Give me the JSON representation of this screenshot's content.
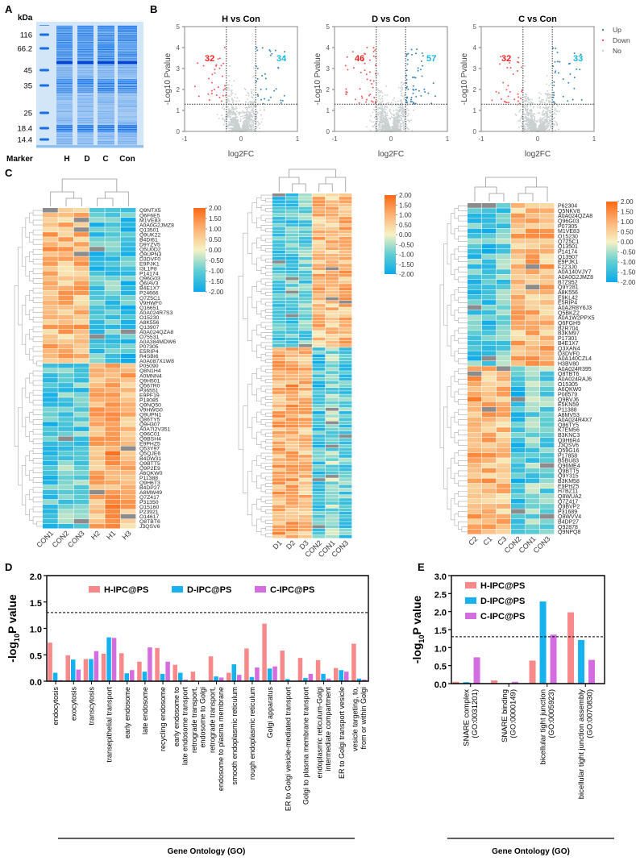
{
  "panels": {
    "a": "A",
    "b": "B",
    "c": "C",
    "d": "D",
    "e": "E"
  },
  "gel": {
    "unit": "kDa",
    "markers": [
      "116",
      "66.2",
      "45",
      "35",
      "25",
      "18.4",
      "14.4"
    ],
    "lanes": [
      "Marker",
      "H",
      "D",
      "C",
      "Con"
    ]
  },
  "volcano": {
    "xlabel": "log2FC",
    "ylabel": "-Log10 Pvalue",
    "xticks": [
      "-1",
      "0",
      "1"
    ],
    "yticks": [
      "0",
      "1",
      "2",
      "3",
      "4",
      "5"
    ],
    "xlim": [
      -1,
      1
    ],
    "ylim": [
      0,
      5
    ],
    "fc_threshold": 0.26,
    "p_threshold": 1.3,
    "legend": [
      {
        "label": "Up",
        "color": "#3d86b8"
      },
      {
        "label": "Down",
        "color": "#f0595a"
      },
      {
        "label": "No",
        "color": "#c9d0d0"
      }
    ],
    "plots": [
      {
        "title": "H vs Con",
        "down": "32",
        "up": "34"
      },
      {
        "title": "D vs Con",
        "down": "46",
        "up": "57"
      },
      {
        "title": "C vs Con",
        "down": "32",
        "up": "33"
      }
    ]
  },
  "chart_data": [
    {
      "type": "heatmap",
      "columns": [
        "CON1",
        "CON2",
        "CON3",
        "H2",
        "H1",
        "H3"
      ],
      "colorbar": {
        "ticks": [
          "2.00",
          "1.50",
          "1.00",
          "0.50",
          "0.00",
          "-0.50",
          "-1.00",
          "-1.50",
          "-2.00"
        ],
        "range": [
          -2,
          2
        ]
      },
      "blocks": [
        {
          "rows": 32,
          "means": [
            0.9,
            0.8,
            0.9,
            -1.3,
            -1.1,
            -1.4
          ]
        },
        {
          "rows": 34,
          "means": [
            -1.3,
            -1.0,
            -1.1,
            0.9,
            1.2,
            0.8
          ]
        }
      ],
      "row_labels": [
        "Q9NTX5",
        "Q6F6E5",
        "M1VE83",
        "A0A0G2JMZ8",
        "Q13501",
        "Q9UK22",
        "B4DI61",
        "D9YZV5",
        "Q5U0D2",
        "Q9UPN3",
        "D3DVF0",
        "E9PJK1",
        "I3L1P8",
        "P14174",
        "Q96G03",
        "Q6IAV3",
        "B4E1X7",
        "P24666",
        "Q7Z5C1",
        "V9HWF0",
        "Q16651",
        "A0A024R7S3",
        "O15230",
        "A8K556",
        "Q13907",
        "A0A024QZA8",
        "O75531",
        "A0A384MDW6",
        "P07305",
        "E5RIP4",
        "R4SBI6",
        "A0A087X1W8",
        "P05090",
        "Q8N1H4",
        "A0MNN4",
        "Q9H501",
        "Q567R0",
        "P36551",
        "E9PF19",
        "P18085",
        "Q9NQ50",
        "V9HWG0",
        "Q9UPN1",
        "Q86TY5",
        "Q9H307",
        "A0A7I2V351",
        "Q96C01",
        "Q9BSH4",
        "E9PHZ5",
        "Q53Y97",
        "Q5QJE6",
        "B4DW31",
        "Q9BTT5",
        "Q9P2E9",
        "A6QKW0",
        "P11388",
        "Q9H6T3",
        "B4DP27",
        "A8MW49",
        "Q7Z417",
        "P31350",
        "O15160",
        "P23921",
        "O14617",
        "Q8TBT6",
        "J3QSV6"
      ]
    },
    {
      "type": "heatmap",
      "columns": [
        "D1",
        "D2",
        "D3",
        "CON2",
        "CON1",
        "CON3"
      ],
      "colorbar": {
        "ticks": [
          "2.00",
          "1.50",
          "1.00",
          "0.50",
          "0.00",
          "-0.50",
          "-1.00",
          "-1.50",
          "-2.00"
        ],
        "range": [
          -2,
          2
        ]
      },
      "blocks": [
        {
          "rows": 46,
          "means": [
            -1.2,
            -1.1,
            -1.0,
            0.8,
            0.7,
            0.9
          ]
        },
        {
          "rows": 57,
          "means": [
            1.0,
            1.1,
            0.8,
            -1.3,
            -0.7,
            -1.1
          ]
        }
      ]
    },
    {
      "type": "heatmap",
      "columns": [
        "C2",
        "C1",
        "C3",
        "CON2",
        "CON1",
        "CON3"
      ],
      "colorbar": {
        "ticks": [
          "2.00",
          "1.50",
          "1.00",
          "0.50",
          "0.00",
          "-0.50",
          "-1.00",
          "-1.50",
          "-2.00"
        ],
        "range": [
          -2,
          2
        ]
      },
      "blocks": [
        {
          "rows": 32,
          "means": [
            -1.2,
            -1.3,
            -1.0,
            0.8,
            0.9,
            0.9
          ]
        },
        {
          "rows": 33,
          "means": [
            1.1,
            0.9,
            0.7,
            -1.3,
            -0.9,
            -0.9
          ]
        }
      ],
      "row_labels": [
        "P62304",
        "Q5NKV8",
        "A0A024QZA8",
        "Q96G03",
        "P07305",
        "M1VE83",
        "O15230",
        "Q7Z5C1",
        "Q13501",
        "P14174",
        "Q13907",
        "E9PJK1",
        "F2Z3J0",
        "A0A140VJY7",
        "A0A0G2JMZ8",
        "B7Z952",
        "Q9Y281",
        "A8K556",
        "E9KL42",
        "E5RIP4",
        "A0A2R8Y6J3",
        "Q5BKZ2",
        "A0A1W2PPX5",
        "Q6FGH9",
        "B2R704",
        "B3KM97",
        "P17301",
        "B4E1X7",
        "Q3XAN4",
        "D3DVF0",
        "A0A140CZL4",
        "H3BV80",
        "A0A024R395",
        "Q8TBT6",
        "A0A024RAJ6",
        "O15305",
        "A6QKW0",
        "P08579",
        "Q9BVJ6",
        "E5KN59",
        "P11388",
        "A8MV53",
        "A0A024R4X7",
        "Q86TY5",
        "K7EM56",
        "B3KNC3",
        "Q9H6R4",
        "J3QSV6",
        "Q59G16",
        "P17858",
        "B5BU83",
        "Q96ME4",
        "Q9BTT5",
        "Q9Y315",
        "B3KM58",
        "E9PHZ5",
        "H7BZ11",
        "Q8WUA2",
        "Q7Z417",
        "Q9BVP2",
        "P31689",
        "Q8WVV4",
        "B4DP27",
        "Q92878",
        "Q9NPQ8"
      ]
    },
    {
      "type": "bar",
      "ylabel_prefix": "-log",
      "ylabel_sub": "10",
      "ylabel_suffix": "P value",
      "xlabel": "Gene Ontology (GO)",
      "ylim": [
        0,
        2.0
      ],
      "yticks": [
        "0.0",
        "0.5",
        "1.0",
        "1.5",
        "2.0"
      ],
      "threshold": 1.3,
      "legend_placement": "top",
      "categories": [
        [
          "endocytosis"
        ],
        [
          "exocytosis"
        ],
        [
          "transcytosis"
        ],
        [
          "transepithelial transport"
        ],
        [
          "early endosome"
        ],
        [
          "late endosome"
        ],
        [
          "recycling endosome"
        ],
        [
          "early endosome to",
          "late endosome transport"
        ],
        [
          "retrograde transport,",
          "endosome to Golgi"
        ],
        [
          "retrograde transport,",
          "endosome to plasma membrane"
        ],
        [
          "smooth endoplasmic reticulum"
        ],
        [
          "rough endoplasmic reticulum"
        ],
        [
          "Golgi apparatus"
        ],
        [
          "ER to Golgi vesicle-mediated transport"
        ],
        [
          "Golgi to plasma membrane transport"
        ],
        [
          "endoplasmic reticulum-Golgi",
          "intermediate compartment"
        ],
        [
          "ER to Golgi transport vesicle"
        ],
        [
          "vesicle targeting, to,",
          "from or within Golgi"
        ]
      ],
      "series": [
        {
          "name": "H-IPC@PS",
          "color": "#f7898a",
          "values": [
            0.73,
            0.49,
            0.42,
            0.52,
            0.53,
            0.37,
            0.63,
            0.31,
            0.18,
            0.47,
            0.16,
            0.62,
            1.09,
            0.58,
            0.44,
            0.4,
            0.25,
            0.71
          ]
        },
        {
          "name": "D-IPC@PS",
          "color": "#16b2f0",
          "values": [
            0.16,
            0.41,
            0.42,
            0.83,
            0.15,
            0.18,
            0.14,
            0.16,
            0,
            0.09,
            0.32,
            0.08,
            0.24,
            0.04,
            0.06,
            0.14,
            0.21,
            0.05
          ]
        },
        {
          "name": "C-IPC@PS",
          "color": "#d46ee0",
          "values": [
            0.02,
            0.22,
            0.57,
            0.82,
            0.21,
            0.64,
            0.37,
            0.03,
            0,
            0.07,
            0.12,
            0.26,
            0.28,
            0,
            0.14,
            0.05,
            0.18,
            0.03
          ]
        }
      ]
    },
    {
      "type": "bar",
      "ylabel_prefix": "-log",
      "ylabel_sub": "10",
      "ylabel_suffix": "P value",
      "xlabel": "Gene Ontology (GO)",
      "ylim": [
        0,
        3.0
      ],
      "yticks": [
        "0.0",
        "0.5",
        "1.0",
        "1.5",
        "2.0",
        "2.5",
        "3.0"
      ],
      "threshold": 1.3,
      "legend_placement": "top-left",
      "categories": [
        [
          "SNARE complex",
          "(GO:0031201)"
        ],
        [
          "SNARE binding",
          "(GO:0000149)"
        ],
        [
          "bicellular tight junction",
          "(GO:0005923)"
        ],
        [
          "bicellular tight junction assembly",
          "(GO:0070830)"
        ]
      ],
      "series": [
        {
          "name": "H-IPC@PS",
          "color": "#f7898a",
          "values": [
            0.05,
            0.09,
            0.64,
            1.98
          ]
        },
        {
          "name": "D-IPC@PS",
          "color": "#16b2f0",
          "values": [
            0.04,
            0,
            2.28,
            1.21
          ]
        },
        {
          "name": "C-IPC@PS",
          "color": "#d46ee0",
          "values": [
            0.73,
            0.05,
            1.36,
            0.66
          ]
        }
      ]
    }
  ]
}
